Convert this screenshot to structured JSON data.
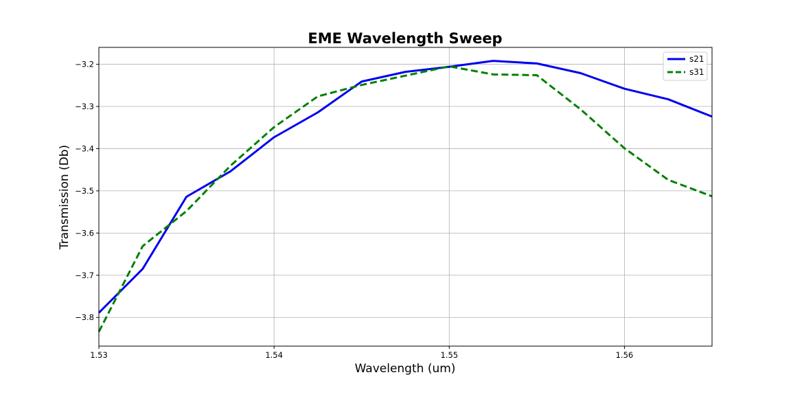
{
  "chart_data": {
    "type": "line",
    "title": "EME Wavelength Sweep",
    "xlabel": "Wavelength (um)",
    "ylabel": "Transmission (Db)",
    "xlim": [
      1.53,
      1.565
    ],
    "ylim": [
      -3.868,
      -3.16
    ],
    "x_ticks": [
      1.53,
      1.54,
      1.55,
      1.56
    ],
    "x_tick_labels": [
      "1.53",
      "1.54",
      "1.55",
      "1.56"
    ],
    "y_ticks": [
      -3.2,
      -3.3,
      -3.4,
      -3.5,
      -3.6,
      -3.7,
      -3.8
    ],
    "y_tick_labels": [
      "−3.2",
      "−3.3",
      "−3.4",
      "−3.5",
      "−3.6",
      "−3.7",
      "−3.8"
    ],
    "grid": true,
    "legend_position": "top-right",
    "x": [
      1.53,
      1.5325,
      1.535,
      1.5375,
      1.54,
      1.5425,
      1.545,
      1.5475,
      1.55,
      1.5525,
      1.555,
      1.5575,
      1.56,
      1.5625,
      1.565
    ],
    "series": [
      {
        "name": "s21",
        "color": "#0000ee",
        "style": "solid",
        "values": [
          -3.789,
          -3.685,
          -3.514,
          -3.454,
          -3.373,
          -3.314,
          -3.241,
          -3.218,
          -3.206,
          -3.192,
          -3.198,
          -3.221,
          -3.258,
          -3.283,
          -3.324
        ]
      },
      {
        "name": "s31",
        "color": "#008000",
        "style": "dashed",
        "values": [
          -3.834,
          -3.631,
          -3.548,
          -3.441,
          -3.349,
          -3.276,
          -3.249,
          -3.227,
          -3.205,
          -3.224,
          -3.226,
          -3.307,
          -3.399,
          -3.474,
          -3.513
        ]
      }
    ]
  }
}
